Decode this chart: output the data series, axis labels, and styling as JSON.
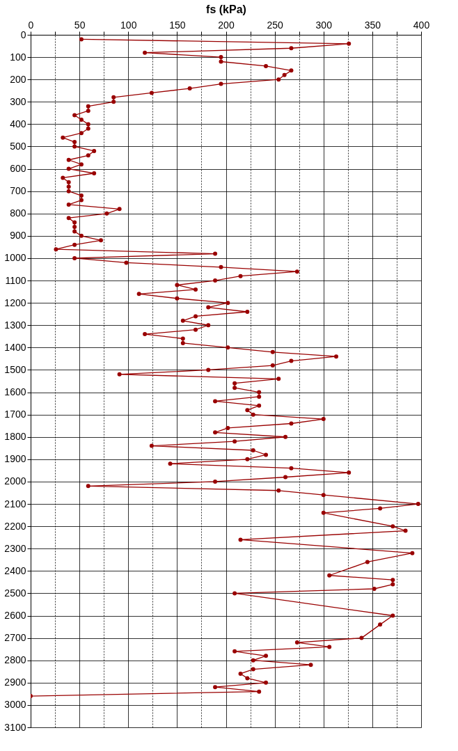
{
  "chart_data": {
    "type": "line",
    "orientation": "horizontal",
    "xlabel": "fs (kPa)",
    "x": [
      20,
      40,
      60,
      80,
      100,
      120,
      140,
      160,
      180,
      200,
      220,
      240,
      260,
      280,
      300,
      320,
      340,
      360,
      380,
      400,
      420,
      440,
      460,
      480,
      500,
      520,
      540,
      560,
      580,
      600,
      620,
      640,
      660,
      680,
      700,
      720,
      740,
      760,
      780,
      800,
      820,
      840,
      860,
      880,
      900,
      920,
      940,
      960,
      980,
      1000,
      1020,
      1040,
      1060,
      1080,
      1100,
      1120,
      1140,
      1160,
      1180,
      1200,
      1220,
      1240,
      1260,
      1280,
      1300,
      1320,
      1340,
      1360,
      1380,
      1400,
      1420,
      1440,
      1460,
      1480,
      1500,
      1520,
      1540,
      1560,
      1580,
      1600,
      1620,
      1640,
      1660,
      1680,
      1700,
      1720,
      1740,
      1760,
      1780,
      1800,
      1820,
      1840,
      1860,
      1880,
      1900,
      1920,
      1940,
      1960,
      1980,
      2000,
      2020,
      2040,
      2060,
      2100,
      2120,
      2140,
      2200,
      2220,
      2260,
      2320,
      2360,
      2420,
      2440,
      2460,
      2480,
      2500,
      2600,
      2640,
      2700,
      2720,
      2740,
      2760,
      2780,
      2800,
      2820,
      2840,
      2860,
      2880,
      2900,
      2920,
      2940,
      2960
    ],
    "series": [
      {
        "color": "#990000",
        "values": [
          52,
          326,
          267,
          117,
          195,
          195,
          241,
          267,
          260,
          254,
          195,
          163,
          124,
          85,
          85,
          59,
          59,
          45,
          52,
          59,
          59,
          52,
          33,
          45,
          45,
          65,
          59,
          39,
          52,
          39,
          65,
          33,
          39,
          39,
          39,
          52,
          52,
          39,
          91,
          78,
          39,
          45,
          45,
          45,
          52,
          72,
          45,
          26,
          189,
          45,
          98,
          195,
          273,
          215,
          189,
          150,
          169,
          111,
          150,
          202,
          182,
          222,
          169,
          156,
          182,
          169,
          117,
          156,
          156,
          202,
          248,
          313,
          267,
          248,
          182,
          91,
          254,
          209,
          209,
          234,
          234,
          189,
          234,
          222,
          228,
          300,
          267,
          202,
          189,
          261,
          209,
          124,
          228,
          241,
          222,
          143,
          267,
          326,
          261,
          189,
          59,
          254,
          300,
          397,
          358,
          300,
          371,
          384,
          215,
          391,
          345,
          306,
          371,
          371,
          352,
          209,
          371,
          358,
          339,
          273,
          306,
          209,
          241,
          228,
          287,
          228,
          215,
          222,
          241,
          189,
          234,
          0
        ]
      }
    ],
    "xlim": [
      0,
      400
    ],
    "xticks": [
      0,
      {
        "value": 25,
        "label": null
      },
      50,
      {
        "value": 75,
        "label": null
      },
      100,
      {
        "value": 125,
        "label": null
      },
      150,
      {
        "value": 175,
        "label": null
      },
      200,
      {
        "value": 225,
        "label": null
      },
      250,
      {
        "value": 275,
        "label": null
      },
      300,
      {
        "value": 325,
        "label": null
      },
      350,
      {
        "value": 375,
        "label": null
      },
      400
    ],
    "ylim": [
      3100,
      0
    ],
    "yticks": [
      0,
      100,
      200,
      300,
      400,
      500,
      600,
      700,
      800,
      900,
      1000,
      1100,
      1200,
      1300,
      1400,
      1500,
      1600,
      1700,
      1800,
      1900,
      2000,
      2100,
      2200,
      2300,
      2400,
      2500,
      2600,
      2700,
      2800,
      2900,
      3000,
      3100
    ],
    "grid": true,
    "marker": "circle",
    "line_style": "solid"
  }
}
